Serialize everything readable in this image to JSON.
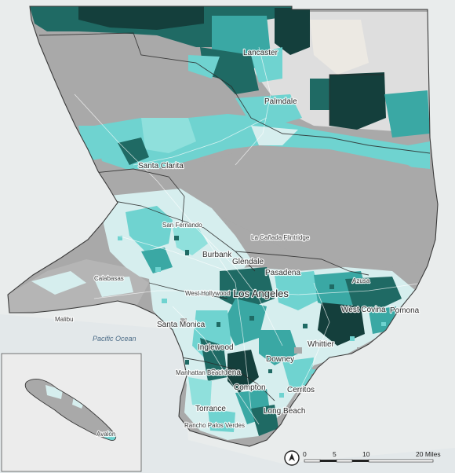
{
  "map": {
    "ocean_label": "Pacific Ocean",
    "places": [
      {
        "id": "lancaster",
        "name": "Lancaster"
      },
      {
        "id": "palmdale",
        "name": "Palmdale"
      },
      {
        "id": "santa-clarita",
        "name": "Santa Clarita"
      },
      {
        "id": "san-fernando",
        "name": "San Fernando"
      },
      {
        "id": "la-canada-flintridge",
        "name": "La Cañada Flintridge"
      },
      {
        "id": "burbank",
        "name": "Burbank"
      },
      {
        "id": "glendale",
        "name": "Glendale"
      },
      {
        "id": "pasadena",
        "name": "Pasadena"
      },
      {
        "id": "calabasas",
        "name": "Calabasas"
      },
      {
        "id": "malibu",
        "name": "Malibu"
      },
      {
        "id": "west-hollywood",
        "name": "West Hollywood"
      },
      {
        "id": "los-angeles",
        "name": "Los Angeles"
      },
      {
        "id": "santa-monica",
        "name": "Santa Monica"
      },
      {
        "id": "inglewood",
        "name": "Inglewood"
      },
      {
        "id": "azusa",
        "name": "Azusa"
      },
      {
        "id": "west-covina",
        "name": "West Covina"
      },
      {
        "id": "pomona",
        "name": "Pomona"
      },
      {
        "id": "whittier",
        "name": "Whittier"
      },
      {
        "id": "downey",
        "name": "Downey"
      },
      {
        "id": "gardena",
        "name": "Gardena"
      },
      {
        "id": "compton",
        "name": "Compton"
      },
      {
        "id": "manhattan-beach",
        "name": "Manhattan Beach"
      },
      {
        "id": "cerritos",
        "name": "Cerritos"
      },
      {
        "id": "torrance",
        "name": "Torrance"
      },
      {
        "id": "long-beach",
        "name": "Long Beach"
      },
      {
        "id": "rancho-palos-verdes",
        "name": "Rancho Palos Verdes"
      },
      {
        "id": "avalon",
        "name": "Avalon"
      }
    ],
    "colors": {
      "background": "#e9ecec",
      "no_data": "#a9a9a9",
      "light": "#d6eeee",
      "mid": "#6fd3d0",
      "teal": "#3aa8a4",
      "dark": "#1f6a64",
      "darkest": "#143f3c"
    }
  },
  "scale_bar": {
    "ticks": [
      "0",
      "5",
      "10",
      "20 Miles"
    ],
    "north_arrow_icon": "north-arrow-icon"
  }
}
